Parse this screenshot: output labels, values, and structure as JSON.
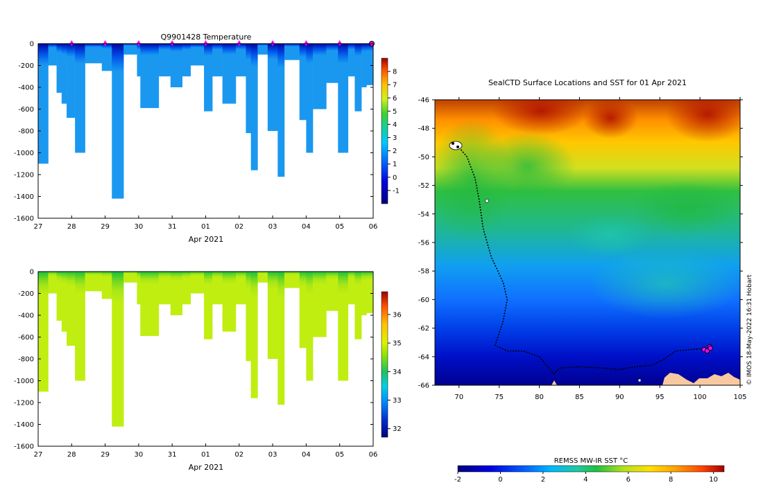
{
  "figure": {
    "credit": "© IMOS 18-May-2022 16:31 Hobart"
  },
  "chart_data": [
    {
      "type": "heatmap",
      "name": "temperature-profile",
      "title": "Q9901428  Temperature",
      "xlabel": "Apr 2021",
      "ylabel": "",
      "x_ticks": [
        "27",
        "28",
        "29",
        "30",
        "31",
        "01",
        "02",
        "03",
        "04",
        "05",
        "06"
      ],
      "y_ticks": [
        0,
        -200,
        -400,
        -600,
        -800,
        -1000,
        -1200,
        -1400,
        -1600
      ],
      "y_tick_labels": [
        "0",
        "-200",
        "-400",
        "-600",
        "-800",
        "-1000",
        "-1200",
        "-1400",
        "-1600"
      ],
      "xlim": [
        0,
        10
      ],
      "ylim": [
        -1600,
        0
      ],
      "colorbar_ticks": [
        "8",
        "7",
        "6",
        "5",
        "4",
        "3",
        "2",
        "1",
        "0",
        "-1"
      ],
      "colorbar_range": [
        -2.0,
        9.0
      ],
      "marker_days": [
        1,
        2,
        3,
        4,
        5,
        6,
        7,
        8,
        9
      ],
      "marker_color": "#ff00ff",
      "profiles": [
        {
          "start": 0.0,
          "end": 0.3,
          "depth": -1100
        },
        {
          "start": 0.3,
          "end": 0.55,
          "depth": -200
        },
        {
          "start": 0.55,
          "end": 0.7,
          "depth": -450
        },
        {
          "start": 0.7,
          "end": 0.85,
          "depth": -550
        },
        {
          "start": 0.85,
          "end": 1.1,
          "depth": -680
        },
        {
          "start": 1.1,
          "end": 1.4,
          "depth": -1000
        },
        {
          "start": 1.4,
          "end": 1.9,
          "depth": -180
        },
        {
          "start": 1.9,
          "end": 2.2,
          "depth": -250
        },
        {
          "start": 2.2,
          "end": 2.55,
          "depth": -1420
        },
        {
          "start": 2.55,
          "end": 2.95,
          "depth": -100
        },
        {
          "start": 2.95,
          "end": 3.05,
          "depth": -300
        },
        {
          "start": 3.05,
          "end": 3.6,
          "depth": -590
        },
        {
          "start": 3.6,
          "end": 3.95,
          "depth": -300
        },
        {
          "start": 3.95,
          "end": 4.3,
          "depth": -400
        },
        {
          "start": 4.3,
          "end": 4.55,
          "depth": -300
        },
        {
          "start": 4.55,
          "end": 4.95,
          "depth": -200
        },
        {
          "start": 4.95,
          "end": 5.2,
          "depth": -620
        },
        {
          "start": 5.2,
          "end": 5.5,
          "depth": -300
        },
        {
          "start": 5.5,
          "end": 5.9,
          "depth": -550
        },
        {
          "start": 5.9,
          "end": 6.2,
          "depth": -300
        },
        {
          "start": 6.2,
          "end": 6.35,
          "depth": -820
        },
        {
          "start": 6.35,
          "end": 6.55,
          "depth": -1160
        },
        {
          "start": 6.55,
          "end": 6.85,
          "depth": -100
        },
        {
          "start": 6.85,
          "end": 7.15,
          "depth": -800
        },
        {
          "start": 7.15,
          "end": 7.35,
          "depth": -1220
        },
        {
          "start": 7.35,
          "end": 7.8,
          "depth": -150
        },
        {
          "start": 7.8,
          "end": 8.0,
          "depth": -700
        },
        {
          "start": 8.0,
          "end": 8.2,
          "depth": -1000
        },
        {
          "start": 8.2,
          "end": 8.6,
          "depth": -600
        },
        {
          "start": 8.6,
          "end": 8.95,
          "depth": -360
        },
        {
          "start": 8.95,
          "end": 9.25,
          "depth": -1000
        },
        {
          "start": 9.25,
          "end": 9.45,
          "depth": -300
        },
        {
          "start": 9.45,
          "end": 9.65,
          "depth": -620
        },
        {
          "start": 9.65,
          "end": 9.8,
          "depth": -400
        },
        {
          "start": 9.8,
          "end": 10.0,
          "depth": -380
        }
      ]
    },
    {
      "type": "heatmap",
      "name": "salinity-profile",
      "title": "",
      "xlabel": "Apr 2021",
      "ylabel": "",
      "x_ticks": [
        "27",
        "28",
        "29",
        "30",
        "31",
        "01",
        "02",
        "03",
        "04",
        "05",
        "06"
      ],
      "y_ticks": [
        0,
        -200,
        -400,
        -600,
        -800,
        -1000,
        -1200,
        -1400,
        -1600
      ],
      "y_tick_labels": [
        "0",
        "-200",
        "-400",
        "-600",
        "-800",
        "-1000",
        "-1200",
        "-1400",
        "-1600"
      ],
      "xlim": [
        0,
        10
      ],
      "ylim": [
        -1600,
        0
      ],
      "colorbar_ticks": [
        "36",
        "35",
        "34",
        "33",
        "32"
      ],
      "colorbar_range": [
        31.7,
        36.8
      ],
      "profiles": "same as temperature-profile"
    },
    {
      "type": "heatmap",
      "name": "sst-map",
      "title": "SealCTD Surface Locations and SST for 01 Apr 2021",
      "xlabel": "",
      "ylabel": "",
      "x_ticks": [
        "70",
        "75",
        "80",
        "85",
        "90",
        "95",
        "100",
        "105"
      ],
      "y_ticks": [
        "-46",
        "-48",
        "-50",
        "-52",
        "-54",
        "-56",
        "-58",
        "-60",
        "-62",
        "-64",
        "-66"
      ],
      "xlim": [
        67,
        105
      ],
      "ylim": [
        -66,
        -46
      ],
      "colorbar_label": "REMSS MW-IR SST °C",
      "colorbar_ticks": [
        "-2",
        "0",
        "2",
        "4",
        "6",
        "8",
        "10"
      ],
      "colorbar_range": [
        -2,
        10.5
      ],
      "track": [
        [
          69.8,
          -49.2
        ],
        [
          71,
          -50
        ],
        [
          72,
          -51.5
        ],
        [
          72.5,
          -53
        ],
        [
          73,
          -55
        ],
        [
          74,
          -57
        ],
        [
          75.5,
          -58.8
        ],
        [
          76,
          -60
        ],
        [
          75.5,
          -61.5
        ],
        [
          74.5,
          -63.2
        ],
        [
          76,
          -63.6
        ],
        [
          78,
          -63.6
        ],
        [
          80,
          -64
        ],
        [
          81.8,
          -65.2
        ],
        [
          82.5,
          -64.8
        ],
        [
          85,
          -64.7
        ],
        [
          88,
          -64.8
        ],
        [
          90,
          -64.9
        ],
        [
          92,
          -64.7
        ],
        [
          94,
          -64.6
        ],
        [
          95.5,
          -64.2
        ],
        [
          97,
          -63.6
        ],
        [
          99,
          -63.5
        ],
        [
          101,
          -63.4
        ]
      ],
      "recent_positions": [
        [
          100.5,
          -63.5
        ],
        [
          101.2,
          -63.3
        ],
        [
          100.9,
          -63.6
        ],
        [
          101.3,
          -63.4
        ]
      ],
      "land_color": "#f8c9a0"
    }
  ]
}
